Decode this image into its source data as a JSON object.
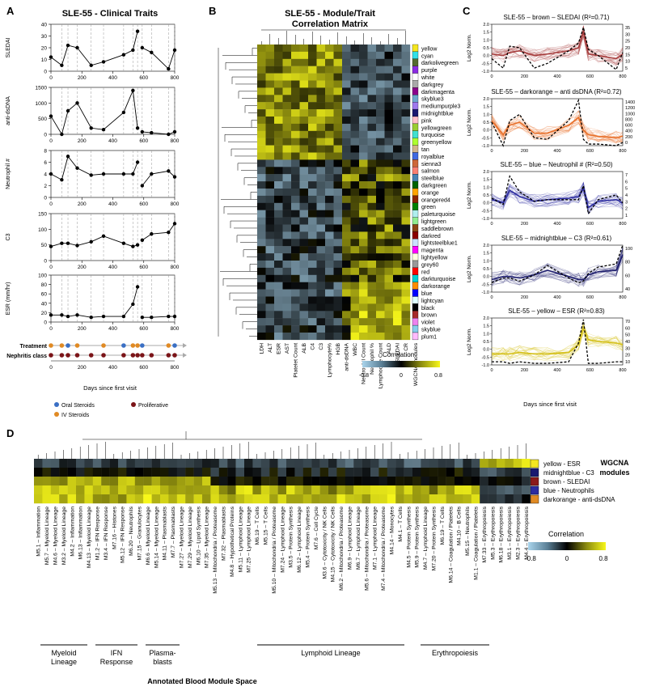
{
  "panels": {
    "a": "A",
    "b": "B",
    "c": "C",
    "d": "D"
  },
  "panel_a": {
    "title": "SLE-55 - Clinical Traits",
    "xlabel": "Days since first visit",
    "xticks": [
      "0",
      "200",
      "400",
      "600",
      "800"
    ],
    "treatment_label": "Treatment",
    "nephritis_label": "Nephritis class",
    "legend": {
      "oral": "Oral Steroids",
      "iv": "IV Steroids",
      "prolif": "Proliferative"
    },
    "colors": {
      "oral": "#3a6fc4",
      "iv": "#e08a24",
      "prolif": "#7b1418"
    }
  },
  "chart_data": [
    {
      "type": "line",
      "title": "SLEDAI",
      "ylabel": "SLEDAI",
      "x": [
        0,
        70,
        110,
        170,
        260,
        340,
        470,
        530,
        560,
        590,
        650,
        760,
        800
      ],
      "y": [
        12,
        5,
        22,
        20,
        5,
        8,
        14,
        18,
        34,
        20,
        16,
        2,
        18
      ],
      "ylim": [
        0,
        40
      ],
      "yticks": [
        "0",
        "10",
        "20",
        "30",
        "40"
      ]
    },
    {
      "type": "line",
      "title": "anti-dsDNA",
      "ylabel": "anti-dsDNA",
      "x": [
        0,
        70,
        110,
        170,
        260,
        340,
        470,
        530,
        560,
        590,
        650,
        760,
        800
      ],
      "y": [
        580,
        0,
        750,
        1000,
        200,
        150,
        700,
        1400,
        200,
        80,
        50,
        0,
        80
      ],
      "ylim": [
        0,
        1500
      ],
      "yticks": [
        "0",
        "500",
        "1000",
        "1500"
      ]
    },
    {
      "type": "line",
      "title": "Neutrophil #",
      "ylabel": "Neutrophil #",
      "x": [
        0,
        70,
        110,
        170,
        260,
        340,
        470,
        530,
        560,
        590,
        650,
        760,
        800
      ],
      "y": [
        4,
        3,
        7,
        5,
        3.8,
        4,
        4,
        4,
        6,
        2,
        4,
        4.5,
        3.5
      ],
      "ylim": [
        0,
        8
      ],
      "yticks": [
        "0",
        "2",
        "4",
        "6",
        "8"
      ]
    },
    {
      "type": "line",
      "title": "C3",
      "ylabel": "C3",
      "x": [
        0,
        70,
        110,
        170,
        260,
        340,
        470,
        530,
        560,
        590,
        650,
        760,
        800
      ],
      "y": [
        45,
        55,
        55,
        48,
        60,
        78,
        55,
        45,
        50,
        65,
        85,
        90,
        118
      ],
      "ylim": [
        0,
        150
      ],
      "yticks": [
        "0",
        "50",
        "100",
        "150"
      ]
    },
    {
      "type": "line",
      "title": "ESR (mm/hr)",
      "ylabel": "ESR (mm/hr)",
      "x": [
        0,
        70,
        110,
        170,
        260,
        340,
        470,
        530,
        560,
        590,
        650,
        760,
        800
      ],
      "y": [
        15,
        15,
        12,
        15,
        10,
        12,
        12,
        38,
        75,
        10,
        10,
        12,
        12
      ],
      "ylim": [
        0,
        100
      ],
      "yticks": [
        "0",
        "20",
        "40",
        "60",
        "80",
        "100"
      ]
    },
    {
      "type": "heatmap",
      "title": "SLE-55 - Module/Trait Correlation Matrix",
      "columns": [
        "LDH",
        "ALT",
        "ESR",
        "AST",
        "Platelet Count",
        "ALB",
        "C4",
        "C3",
        "Lymphocyte%",
        "HGB",
        "anti-dsDNA",
        "WBC",
        "Neutrophil Count",
        "Neutrophil %",
        "Lymphocyte Count",
        "ALD",
        "SLEDAI",
        "CR",
        "WGCNA modules"
      ],
      "rows": [
        "yellow",
        "cyan",
        "darkolivegreen",
        "purple",
        "white",
        "darkgrey",
        "darkmagenta",
        "skyblue3",
        "mediumpurple3",
        "midnightblue",
        "pink",
        "yellowgreen",
        "turquoise",
        "greenyellow",
        "tan",
        "royalblue",
        "sienna3",
        "salmon",
        "steelblue",
        "darkgreen",
        "orange",
        "orangered4",
        "green",
        "paleturquoise",
        "lightgreen",
        "saddlebrown",
        "darkred",
        "lightsteelblue1",
        "magenta",
        "lightyellow",
        "grey60",
        "red",
        "darkturquoise",
        "darkorange",
        "blue",
        "lightcyan",
        "black",
        "brown",
        "violet",
        "skyblue",
        "plum1"
      ],
      "module_colors": [
        "#f5e620",
        "#32e0e8",
        "#556b2f",
        "#8a2be2",
        "#ffffff",
        "#a9a9a9",
        "#8b008b",
        "#6ca6cd",
        "#9f79ee",
        "#191970",
        "#ffc0cb",
        "#9acd32",
        "#40e0d0",
        "#adff2f",
        "#d2b48c",
        "#4169e1",
        "#cd6839",
        "#fa8072",
        "#4682b4",
        "#006400",
        "#ffa500",
        "#8b2500",
        "#008000",
        "#afeeee",
        "#90ee90",
        "#8b4513",
        "#8b0000",
        "#cae1ff",
        "#ff00ff",
        "#ffffe0",
        "#999999",
        "#ff0000",
        "#00ced1",
        "#ff8c00",
        "#0000ff",
        "#e0ffff",
        "#000000",
        "#a52a2a",
        "#ee82ee",
        "#87ceeb",
        "#ffbbff"
      ],
      "legend": {
        "title": "Correlation",
        "min": "-0.8",
        "mid": "0",
        "max": "0.8"
      }
    },
    {
      "type": "line",
      "title": "SLE-55 – brown – SLEDAI (R²=0.71)",
      "color": "#a63c3c",
      "ylabel": "Log2 Norm.",
      "left_ticks": [
        "2.0",
        "1.5",
        "1.0",
        "0.5",
        "0.0",
        "-0.5",
        "-1.0"
      ],
      "right_ticks": [
        "35",
        "30",
        "25",
        "20",
        "15",
        "10",
        "5"
      ],
      "xticks": [
        "0",
        "200",
        "400",
        "600",
        "800"
      ],
      "x": [
        0,
        70,
        110,
        170,
        260,
        340,
        470,
        530,
        560,
        590,
        650,
        760,
        800
      ],
      "mean": [
        0.1,
        0.0,
        0.2,
        0.3,
        0.0,
        0.1,
        0.3,
        0.5,
        1.5,
        0.1,
        0.0,
        -0.2,
        0.1
      ],
      "trait": [
        -0.2,
        -0.8,
        0.6,
        0.5,
        -0.8,
        -0.5,
        0.3,
        0.8,
        1.8,
        0.4,
        0.0,
        -0.9,
        0.2
      ]
    },
    {
      "type": "line",
      "title": "SLE-55 – darkorange – anti dsDNA (R²=0.72)",
      "color": "#e8702a",
      "ylabel": "Log2 Norm.",
      "left_ticks": [
        "2.0",
        "1.5",
        "1.0",
        "0.5",
        "0.0",
        "-0.5",
        "-1.0"
      ],
      "right_ticks": [
        "1400",
        "1200",
        "1000",
        "800",
        "600",
        "400",
        "200",
        "0"
      ],
      "xticks": [
        "0",
        "200",
        "400",
        "600",
        "800"
      ],
      "x": [
        0,
        70,
        110,
        170,
        260,
        340,
        470,
        530,
        560,
        590,
        650,
        760,
        800
      ],
      "mean": [
        0.6,
        -0.3,
        0.3,
        0.5,
        -0.2,
        -0.2,
        0.3,
        0.8,
        0.0,
        -0.3,
        -0.4,
        -0.5,
        -0.4
      ],
      "trait": [
        0.5,
        -1.0,
        0.6,
        1.0,
        -0.5,
        -0.6,
        0.6,
        1.9,
        -0.6,
        -0.9,
        -0.9,
        -1.0,
        -0.8
      ]
    },
    {
      "type": "line",
      "title": "SLE-55 – blue – Neutrophil # (R²=0.50)",
      "color": "#2c2ca0",
      "ylabel": "Log2 Norm.",
      "left_ticks": [
        "2.0",
        "1.5",
        "1.0",
        "0.5",
        "0.0",
        "-0.5",
        "-1.0"
      ],
      "right_ticks": [
        "7",
        "6",
        "5",
        "4",
        "3",
        "2",
        "1"
      ],
      "xticks": [
        "0",
        "200",
        "400",
        "600",
        "800"
      ],
      "x": [
        0,
        70,
        110,
        170,
        260,
        340,
        470,
        530,
        560,
        590,
        650,
        760,
        800
      ],
      "mean": [
        0.2,
        0.0,
        0.8,
        0.4,
        0.1,
        0.2,
        0.3,
        0.4,
        0.9,
        -0.3,
        0.1,
        0.2,
        0.0
      ],
      "trait": [
        0.3,
        -0.1,
        1.7,
        0.7,
        0.1,
        0.2,
        0.2,
        0.2,
        1.1,
        -0.7,
        0.2,
        0.5,
        0.0
      ]
    },
    {
      "type": "line",
      "title": "SLE-55 – midnightblue – C3 (R²=0.61)",
      "color": "#1e1e6e",
      "ylabel": "Log2 Norm.",
      "left_ticks": [
        "2.0",
        "1.5",
        "1.0",
        "0.5",
        "0.0",
        "-0.5",
        "-1.0"
      ],
      "right_ticks": [
        "100",
        "80",
        "60",
        "40"
      ],
      "xticks": [
        "0",
        "200",
        "400",
        "600",
        "800"
      ],
      "x": [
        0,
        70,
        110,
        170,
        260,
        340,
        470,
        530,
        560,
        590,
        650,
        760,
        800
      ],
      "mean": [
        -0.2,
        0.0,
        0.0,
        -0.1,
        0.1,
        0.4,
        0.0,
        -0.2,
        -0.2,
        0.1,
        0.3,
        0.4,
        1.4
      ],
      "trait": [
        -0.4,
        -0.1,
        -0.1,
        -0.3,
        0.1,
        0.7,
        -0.1,
        -0.4,
        -0.3,
        0.2,
        0.6,
        0.8,
        2.0
      ]
    },
    {
      "type": "line",
      "title": "SLE-55 – yellow – ESR (R²=0.83)",
      "color": "#d4c01a",
      "ylabel": "Log2 Norm.",
      "left_ticks": [
        "2.0",
        "1.5",
        "1.0",
        "0.5",
        "0.0",
        "-0.5",
        "-1.0"
      ],
      "right_ticks": [
        "70",
        "60",
        "50",
        "40",
        "30",
        "20",
        "10"
      ],
      "xticks": [
        "0",
        "200",
        "400",
        "600",
        "800"
      ],
      "x": [
        0,
        70,
        110,
        170,
        260,
        340,
        470,
        530,
        560,
        590,
        650,
        760,
        800
      ],
      "mean": [
        -0.3,
        -0.3,
        -0.3,
        -0.2,
        -0.3,
        -0.3,
        -0.2,
        0.3,
        1.3,
        0.6,
        0.5,
        0.4,
        0.3
      ],
      "trait": [
        -0.8,
        -0.8,
        -0.9,
        -0.8,
        -0.9,
        -0.9,
        -0.8,
        0.4,
        1.9,
        -0.9,
        -0.9,
        -0.8,
        -0.8
      ]
    },
    {
      "type": "heatmap",
      "title": "",
      "rows": [
        "yellow - ESR",
        "midnightblue - C3",
        "brown - SLEDAI",
        "blue - Neutrophils",
        "darkorange - anti-dsDNA"
      ],
      "row_colors": [
        "#f5e620",
        "#191970",
        "#8b1a1a",
        "#2c2ca0",
        "#e08a24"
      ],
      "columns": [
        "M5.1 – Inflammation",
        "M5.7 – Myeloid Lineage",
        "M4.6 – Myeloid Lineage",
        "M3.2 – Myeloid Lineage",
        "M4.2 – Inflammation",
        "M6.13 – Inflammation",
        "M4.13 – Myeloid Lineage",
        "M1.2 – IFN Response",
        "M3.4 – IFN Response",
        "M7.16 – Histones",
        "M5.12 – IFN Response",
        "M6.20 – Neutrophils",
        "M7.15 – Granulocytes",
        "M6.6 – Myeloid Lineage",
        "M5.14 – Myeloid Lineage",
        "M4.11 – Plasmablasts",
        "M7.7 – Plasmablasts",
        "M7.27 – Myeloid Lineage",
        "M7.29 – Myeloid Lineage",
        "M6.10 – Lipid Synthesis",
        "M7.35 – Myeloid Lineage",
        "M5.13 – Mitochondria / Proteasome",
        "M7.32 – Plasmablasts",
        "M4.8 – Hypothetical Proteins",
        "M5.11 – Lymphoid Lineage",
        "M7.25 – Lymphoid Lineage",
        "M6.19 – T Cells",
        "M5.15 – T Cells",
        "M5.10 – Mitochondria / Proteasome",
        "M7.24 – Lymphoid Lineage",
        "M3.5 – Protein Synthesis",
        "M6.12 – Lymphoid Lineage",
        "M5.4 – Protein Synthesis",
        "M7.6 – Cell Cycle",
        "M3.6 – Cytotoxicity / NK Cells",
        "M4.15 – Cytotoxicity / NK Cells",
        "M6.2 – Mitochondria / Proteasome",
        "M6.9 – Lymphoid Lineage",
        "M6.7 – Lymphoid Lineage",
        "M5.6 – Mitochondria / Proteasome",
        "M7.1 – Lymphoid Lineage",
        "M7.4 – Mitochondria / Proteasome",
        "M4.14 – Monocytes",
        "M4.1 – T Cells",
        "M4.5 – Protein Synthesis",
        "M5.9 – Protein Synthesis",
        "M4.7 – Lymphoid Lineage",
        "M7.20 – Protein Synthesis",
        "M6.19 – T Cells",
        "M6.14 – Coagulation / Platelets",
        "M4.10 – B Cells",
        "M5.15 – Neutrophils",
        "M1.1 – Coagulation / Platelets",
        "M7.33 – Erythropoiesis",
        "M5.3 – Erythropoiesis",
        "M6.18 – Erythropoiesis",
        "M3.1 – Erythropoiesis",
        "M2.3 – Erythropoiesis",
        "M4.4 – Erythropoiesis"
      ],
      "groups": [
        {
          "label": "Myeloid\nLineage",
          "lines": [
            "Myeloid",
            "Lineage"
          ]
        },
        {
          "label": "IFN\nResponse",
          "lines": [
            "IFN",
            "Response"
          ]
        },
        {
          "label": "Plasma-\nblasts",
          "lines": [
            "Plasma-",
            "blasts"
          ]
        },
        {
          "label": "Lymphoid Lineage",
          "lines": [
            "Lymphoid Lineage"
          ]
        },
        {
          "label": "Erythropoiesis",
          "lines": [
            "Erythropoiesis"
          ]
        }
      ],
      "side_label": [
        "WGCNA",
        "modules"
      ],
      "xlabel": "Annotated Blood Module Space",
      "legend": {
        "title": "Correlation",
        "min": "-0.8",
        "mid": "0",
        "max": "0.8"
      }
    }
  ]
}
